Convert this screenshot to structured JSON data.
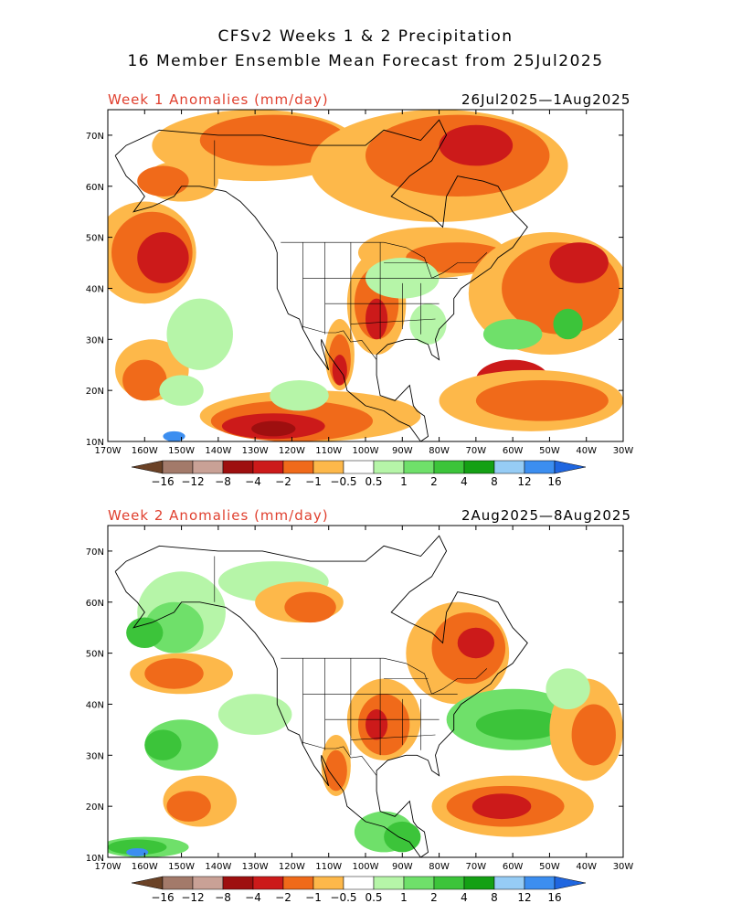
{
  "header": {
    "title_line1": "CFSv2 Weeks 1 & 2 Precipitation",
    "title_line2": "16 Member Ensemble Mean Forecast from 25Jul2025"
  },
  "panels": [
    {
      "label": "Week 1 Anomalies (mm/day)",
      "dates": "26Jul2025—1Aug2025"
    },
    {
      "label": "Week 2 Anomalies (mm/day)",
      "dates": "2Aug2025—8Aug2025"
    }
  ],
  "lat_ticks": [
    "70N",
    "60N",
    "50N",
    "40N",
    "30N",
    "20N",
    "10N"
  ],
  "lon_ticks": [
    "170W",
    "160W",
    "150W",
    "140W",
    "130W",
    "120W",
    "110W",
    "100W",
    "90W",
    "80W",
    "70W",
    "60W",
    "50W",
    "40W",
    "30W"
  ],
  "colorbar": {
    "labels": [
      "−16",
      "−12",
      "−8",
      "−4",
      "−2",
      "−1",
      "−0.5",
      "0.5",
      "1",
      "2",
      "4",
      "8",
      "12",
      "16"
    ],
    "colors": [
      "#6b4226",
      "#a37a6a",
      "#c9a196",
      "#9e0f0f",
      "#cc1a1a",
      "#f06a1a",
      "#fdb84a",
      "#ffffff",
      "#b6f5a8",
      "#6fe06a",
      "#3cc43a",
      "#14a014",
      "#96ccf5",
      "#3c8ef0",
      "#1f66e0"
    ]
  },
  "map_colors": {
    "dry1": "#fdb84a",
    "dry2": "#f06a1a",
    "dry3": "#cc1a1a",
    "dry4": "#9e0f0f",
    "dry5": "#c9a196",
    "wet1": "#b6f5a8",
    "wet2": "#6fe06a",
    "wet3": "#3cc43a",
    "wet5": "#3c8ef0"
  }
}
